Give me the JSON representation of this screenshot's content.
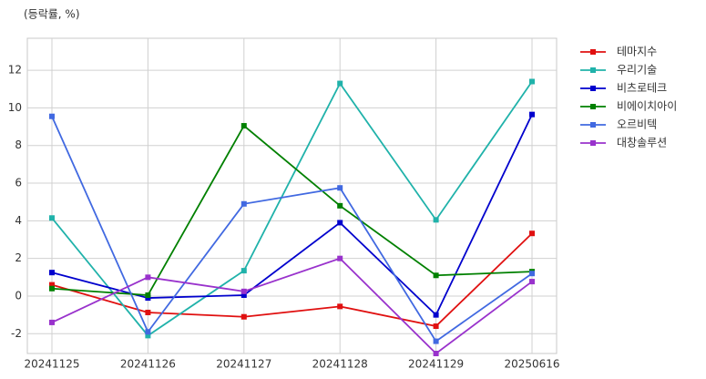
{
  "chart_data": {
    "type": "line",
    "ylabel": "(등락률, %)",
    "categories": [
      "20241125",
      "20241126",
      "20241127",
      "20241128",
      "20241129",
      "20250616"
    ],
    "series": [
      {
        "name": "테마지수",
        "color": "#e01010",
        "values": [
          0.6,
          -0.87,
          -1.1,
          -0.55,
          -1.6,
          3.33
        ]
      },
      {
        "name": "우리기술",
        "color": "#20b2aa",
        "values": [
          4.15,
          -2.1,
          1.35,
          11.3,
          4.05,
          11.4
        ]
      },
      {
        "name": "비츠로테크",
        "color": "#0000cd",
        "values": [
          1.25,
          -0.1,
          0.05,
          3.9,
          -1.0,
          9.65
        ]
      },
      {
        "name": "비에이치아이",
        "color": "#008000",
        "values": [
          0.4,
          0.05,
          9.05,
          4.8,
          1.1,
          1.3
        ]
      },
      {
        "name": "오르비텍",
        "color": "#4169e1",
        "values": [
          9.55,
          -1.9,
          4.9,
          5.75,
          -2.4,
          1.2
        ]
      },
      {
        "name": "대창솔루션",
        "color": "#9932cc",
        "values": [
          -1.4,
          1.0,
          0.25,
          2.0,
          -3.05,
          0.77
        ]
      }
    ],
    "ylim": [
      -3.05,
      13.7
    ],
    "yticks": [
      -2,
      0,
      2,
      4,
      6,
      8,
      10,
      12
    ],
    "grid": true
  }
}
